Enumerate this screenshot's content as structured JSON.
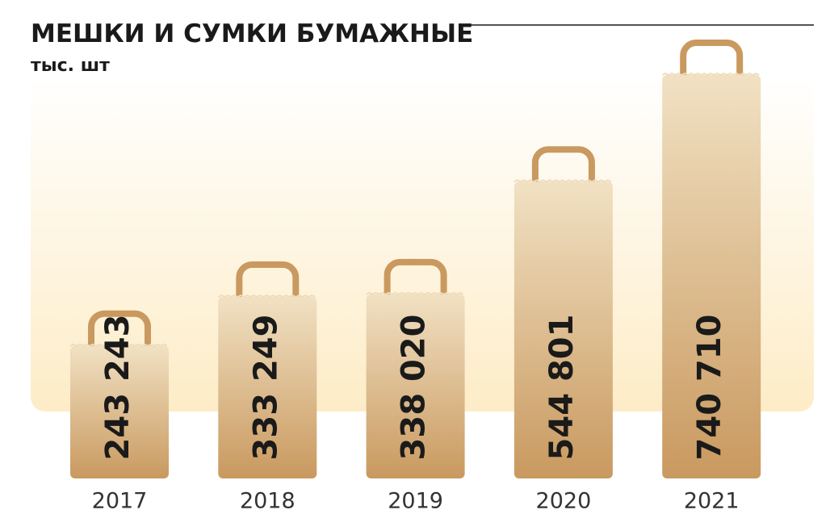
{
  "chart_data": {
    "type": "bar",
    "title": "МЕШКИ И СУМКИ БУМАЖНЫЕ",
    "subtitle": "тыс. шт",
    "categories": [
      "2017",
      "2018",
      "2019",
      "2020",
      "2021"
    ],
    "values": [
      243243,
      333249,
      338020,
      544801,
      740710
    ],
    "value_labels": [
      "243 243",
      "333 249",
      "338 020",
      "544 801",
      "740 710"
    ],
    "color": "#c9995f"
  }
}
